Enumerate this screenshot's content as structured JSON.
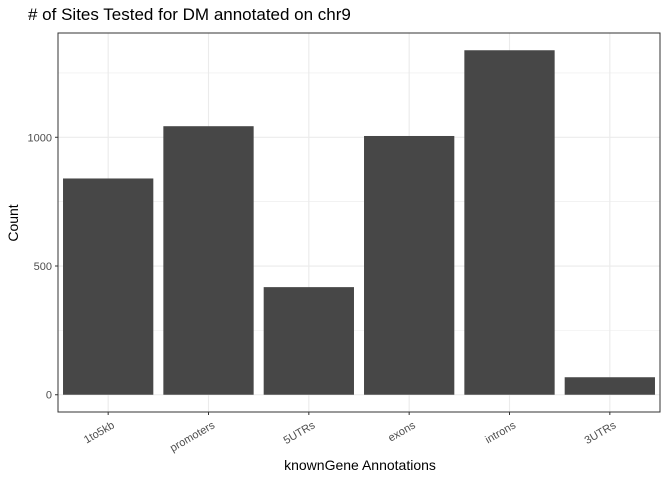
{
  "chart_data": {
    "type": "bar",
    "title": "# of Sites Tested for DM annotated on chr9",
    "xlabel": "knownGene Annotations",
    "ylabel": "Count",
    "categories": [
      "1to5kb",
      "promoters",
      "5UTRs",
      "exons",
      "introns",
      "3UTRs"
    ],
    "values": [
      840,
      1043,
      418,
      1005,
      1338,
      68
    ],
    "ylim": [
      -67,
      1405
    ],
    "yticks": [
      0,
      500,
      1000
    ],
    "ytick_labels": [
      "0",
      "500",
      "1000"
    ],
    "grid": true,
    "legend": "none",
    "colors": {
      "bar": "#474747",
      "grid": "#ebebeb",
      "panel_border": "#333333",
      "text": "#000000",
      "tick_text": "#4d4d4d"
    }
  }
}
